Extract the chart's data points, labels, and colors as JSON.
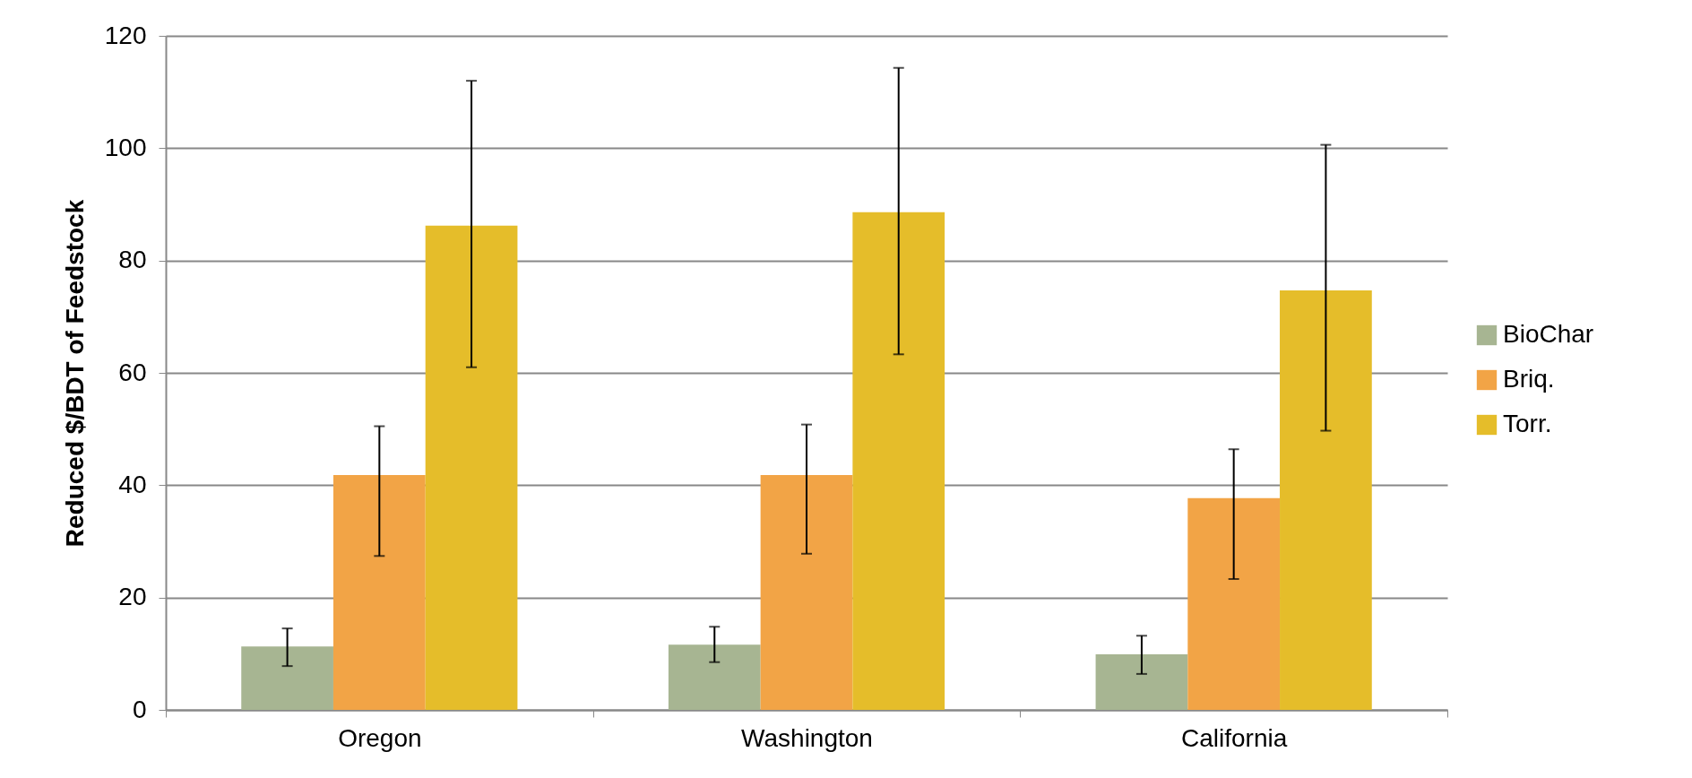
{
  "chart_data": {
    "type": "bar",
    "ylabel": "Reduced  $/BDT of Feedstock",
    "categories": [
      "Oregon",
      "Washington",
      "California"
    ],
    "series": [
      {
        "name": "BioChar",
        "color": "#a7b592",
        "values": [
          11.3,
          11.6,
          9.9
        ],
        "errors": [
          [
            7.8,
            14.5
          ],
          [
            8.5,
            14.8
          ],
          [
            6.4,
            13.2
          ]
        ]
      },
      {
        "name": "Briq.",
        "color": "#f2a446",
        "values": [
          41.8,
          41.8,
          37.7
        ],
        "errors": [
          [
            27.4,
            50.5
          ],
          [
            27.8,
            50.8
          ],
          [
            23.3,
            46.4
          ]
        ]
      },
      {
        "name": "Torr.",
        "color": "#e5bd2a",
        "values": [
          86.2,
          88.6,
          74.7
        ],
        "errors": [
          [
            61,
            112
          ],
          [
            63.3,
            114.3
          ],
          [
            49.7,
            100.6
          ]
        ]
      }
    ],
    "ylim": [
      0,
      120
    ],
    "yticks": [
      0,
      20,
      40,
      60,
      80,
      100,
      120
    ],
    "grid": "y",
    "legend": "right"
  }
}
